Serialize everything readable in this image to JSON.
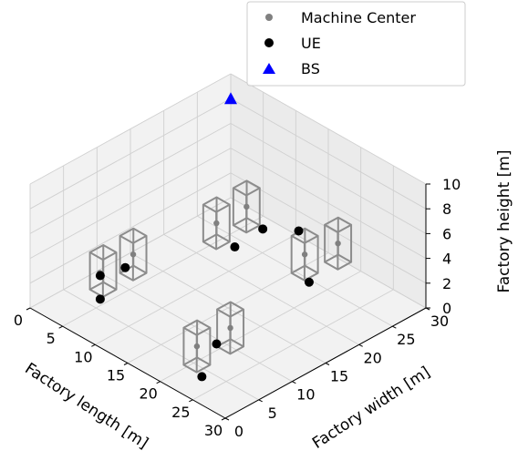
{
  "chart_data": {
    "type": "scatter",
    "projection": "3d",
    "grid": true,
    "legend_position": "top-right",
    "xlabel": "Factory length [m]",
    "ylabel": "Factory width [m]",
    "zlabel": "Factory height [m]",
    "xlim": [
      0,
      30
    ],
    "ylim": [
      0,
      30
    ],
    "zlim": [
      0,
      10
    ],
    "xticks": [
      "0",
      "5",
      "10",
      "15",
      "20",
      "25",
      "30"
    ],
    "yticks": [
      "0",
      "5",
      "10",
      "15",
      "20",
      "25",
      "30"
    ],
    "zticks": [
      "0",
      "2",
      "4",
      "6",
      "8",
      "10"
    ],
    "series": [
      {
        "name": "Machine Center",
        "marker": "circle",
        "color": "#808080",
        "points": [
          {
            "x": 3,
            "y": 7.5,
            "z": 1.5
          },
          {
            "x": 3,
            "y": 12.5,
            "z": 1.5
          },
          {
            "x": 20.5,
            "y": 5,
            "z": 1.5
          },
          {
            "x": 20.5,
            "y": 10,
            "z": 1.5
          },
          {
            "x": 5,
            "y": 23,
            "z": 1.5
          },
          {
            "x": 5,
            "y": 27.5,
            "z": 1.5
          },
          {
            "x": 16,
            "y": 25.5,
            "z": 1.5
          },
          {
            "x": 17,
            "y": 29.5,
            "z": 1.5
          }
        ]
      },
      {
        "name": "UE",
        "marker": "circle",
        "color": "#000000",
        "points": [
          {
            "x": 4.1,
            "y": 6.5,
            "z": 1.9
          },
          {
            "x": 4.1,
            "y": 6.5,
            "z": 0.0
          },
          {
            "x": 2.5,
            "y": 11.8,
            "z": 0.5
          },
          {
            "x": 22.5,
            "y": 3.8,
            "z": 0.0
          },
          {
            "x": 19.1,
            "y": 9.3,
            "z": 0.0
          },
          {
            "x": 7.1,
            "y": 23.7,
            "z": 0.0
          },
          {
            "x": 7.6,
            "y": 27.4,
            "z": 0.5
          },
          {
            "x": 17.6,
            "y": 24.6,
            "z": 0.0
          },
          {
            "x": 12.3,
            "y": 28.2,
            "z": 1.5
          }
        ]
      },
      {
        "name": "BS",
        "marker": "triangle",
        "color": "#0000ff",
        "points": [
          {
            "x": 0,
            "y": 30,
            "z": 8
          }
        ]
      }
    ],
    "enclosures": [
      {
        "x": [
          2,
          4
        ],
        "y": [
          7,
          9
        ],
        "z": [
          0,
          3
        ]
      },
      {
        "x": [
          2,
          4
        ],
        "y": [
          11.5,
          13.5
        ],
        "z": [
          0,
          3
        ]
      },
      {
        "x": [
          19.5,
          21.5
        ],
        "y": [
          4,
          6
        ],
        "z": [
          0,
          3
        ]
      },
      {
        "x": [
          19.5,
          21.5
        ],
        "y": [
          9,
          11
        ],
        "z": [
          0,
          3
        ]
      },
      {
        "x": [
          4,
          6
        ],
        "y": [
          22,
          24
        ],
        "z": [
          0,
          3
        ]
      },
      {
        "x": [
          4,
          6
        ],
        "y": [
          26.5,
          28.5
        ],
        "z": [
          0,
          3
        ]
      },
      {
        "x": [
          15,
          17
        ],
        "y": [
          24.5,
          26.5
        ],
        "z": [
          0,
          3
        ]
      },
      {
        "x": [
          16,
          18
        ],
        "y": [
          28.5,
          30.5
        ],
        "z": [
          0,
          3
        ]
      }
    ]
  }
}
